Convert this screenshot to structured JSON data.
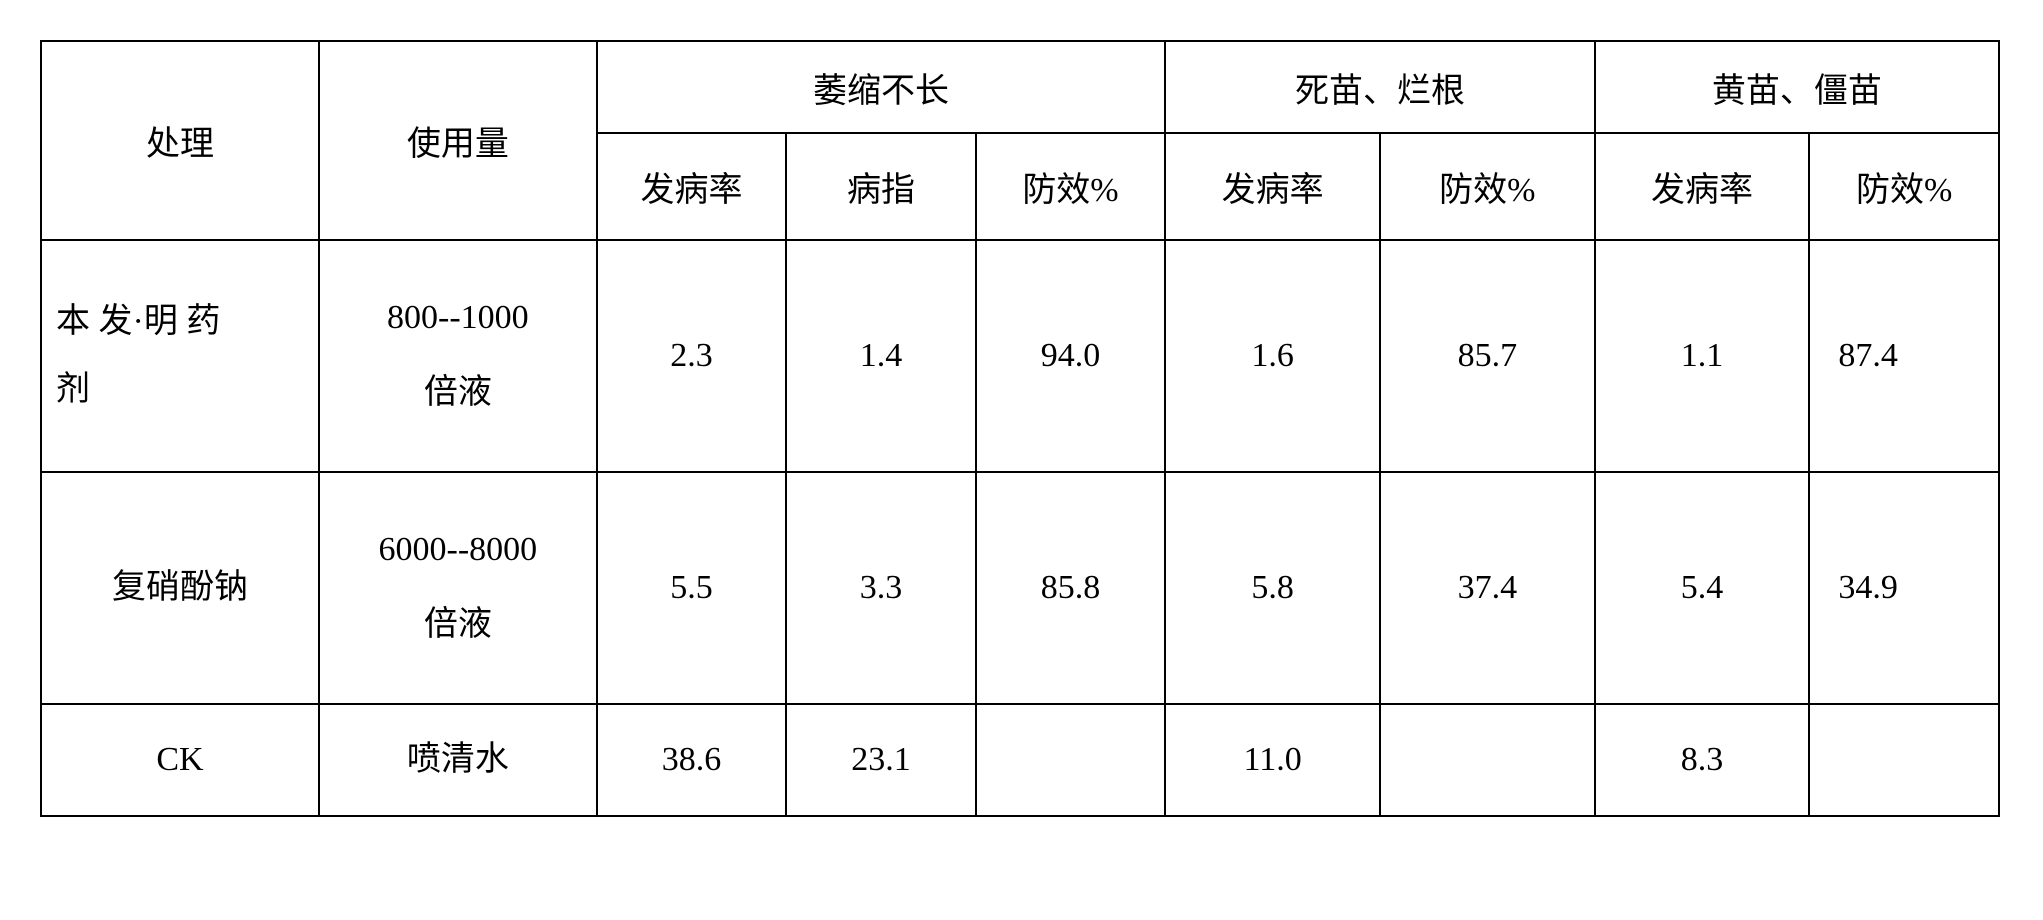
{
  "table": {
    "columns": {
      "treatment": "处理",
      "usage": "使用量",
      "group1": {
        "title": "萎缩不长",
        "sub": [
          "发病率",
          "病指",
          "防效%"
        ]
      },
      "group2": {
        "title": "死苗、烂根",
        "sub": [
          "发病率",
          "防效%"
        ]
      },
      "group3": {
        "title": "黄苗、僵苗",
        "sub": [
          "发病率",
          "防效%"
        ]
      }
    },
    "rows": [
      {
        "treatment_line1": "本 发·明 药",
        "treatment_line2": "剂",
        "usage_line1": "800--1000",
        "usage_line2": "倍液",
        "g1_rate": "2.3",
        "g1_index": "1.4",
        "g1_eff": "94.0",
        "g2_rate": "1.6",
        "g2_eff": "85.7",
        "g3_rate": "1.1",
        "g3_eff": "87.4"
      },
      {
        "treatment_line1": "复硝酚钠",
        "treatment_line2": "",
        "usage_line1": "6000--8000",
        "usage_line2": "倍液",
        "g1_rate": "5.5",
        "g1_index": "3.3",
        "g1_eff": "85.8",
        "g2_rate": "5.8",
        "g2_eff": "37.4",
        "g3_rate": "5.4",
        "g3_eff": "34.9"
      },
      {
        "treatment_line1": "CK",
        "treatment_line2": "",
        "usage_line1": "喷清水",
        "usage_line2": "",
        "g1_rate": "38.6",
        "g1_index": "23.1",
        "g1_eff": "",
        "g2_rate": "11.0",
        "g2_eff": "",
        "g3_rate": "8.3",
        "g3_eff": ""
      }
    ],
    "style": {
      "border_color": "#000000",
      "background_color": "#ffffff",
      "font_family": "SimSun",
      "header_fontsize": 34,
      "cell_fontsize": 34,
      "border_width": 2
    }
  }
}
